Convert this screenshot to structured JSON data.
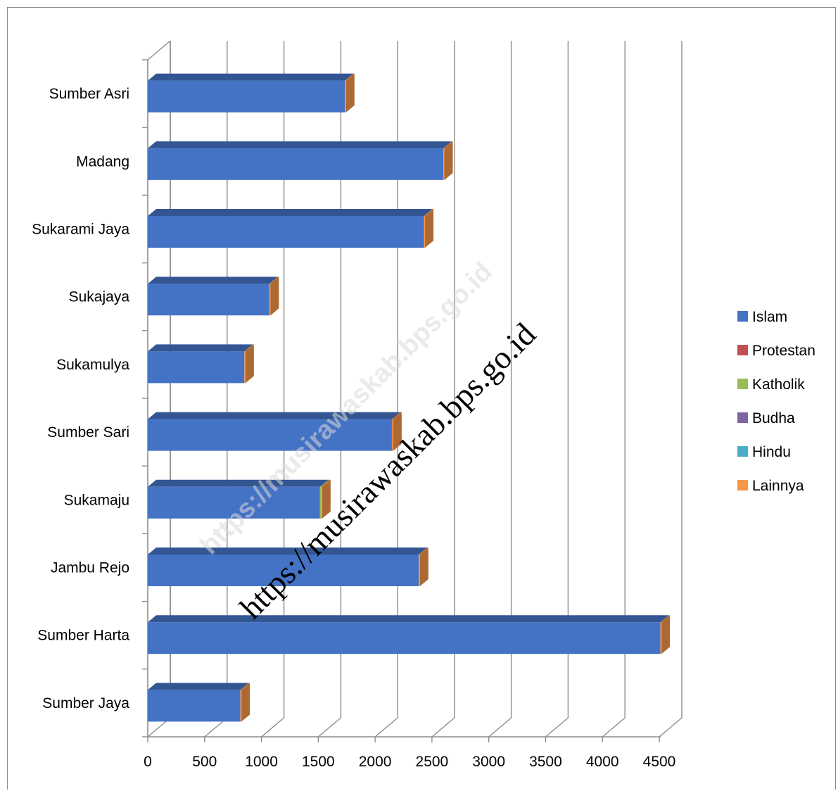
{
  "chart_data": {
    "type": "bar",
    "orientation": "horizontal",
    "stacked": true,
    "style": "3d",
    "categories": [
      "Sumber Asri",
      "Madang",
      "Sukarami Jaya",
      "Sukajaya",
      "Sukamulya",
      "Sumber Sari",
      "Sukamaju",
      "Jambu Rejo",
      "Sumber Harta",
      "Sumber Jaya"
    ],
    "series": [
      {
        "name": "Islam",
        "color": "#4472C4",
        "values": [
          1735,
          2600,
          2430,
          1070,
          850,
          2145,
          1515,
          2385,
          4510,
          815
        ]
      },
      {
        "name": "Protestan",
        "color": "#C0504D",
        "values": [
          0,
          0,
          0,
          0,
          0,
          5,
          0,
          0,
          0,
          0
        ]
      },
      {
        "name": "Katholik",
        "color": "#9BBB59",
        "values": [
          0,
          0,
          0,
          0,
          0,
          0,
          10,
          0,
          0,
          0
        ]
      },
      {
        "name": "Budha",
        "color": "#8064A2",
        "values": [
          0,
          0,
          0,
          0,
          0,
          0,
          0,
          0,
          0,
          0
        ]
      },
      {
        "name": "Hindu",
        "color": "#4BACC6",
        "values": [
          0,
          0,
          0,
          0,
          0,
          0,
          0,
          0,
          0,
          0
        ]
      },
      {
        "name": "Lainnya",
        "color": "#F79646",
        "values": [
          5,
          5,
          5,
          5,
          5,
          5,
          5,
          5,
          5,
          5
        ]
      }
    ],
    "x_ticks": [
      0,
      500,
      1000,
      1500,
      2000,
      2500,
      3000,
      3500,
      4000,
      4500
    ],
    "xlim": [
      0,
      4700
    ],
    "grid": true,
    "legend_position": "right"
  },
  "watermark": {
    "faint": "https://musirawaskab.bps.go.id",
    "dark": "https://musirawaskab.bps.go.id"
  }
}
